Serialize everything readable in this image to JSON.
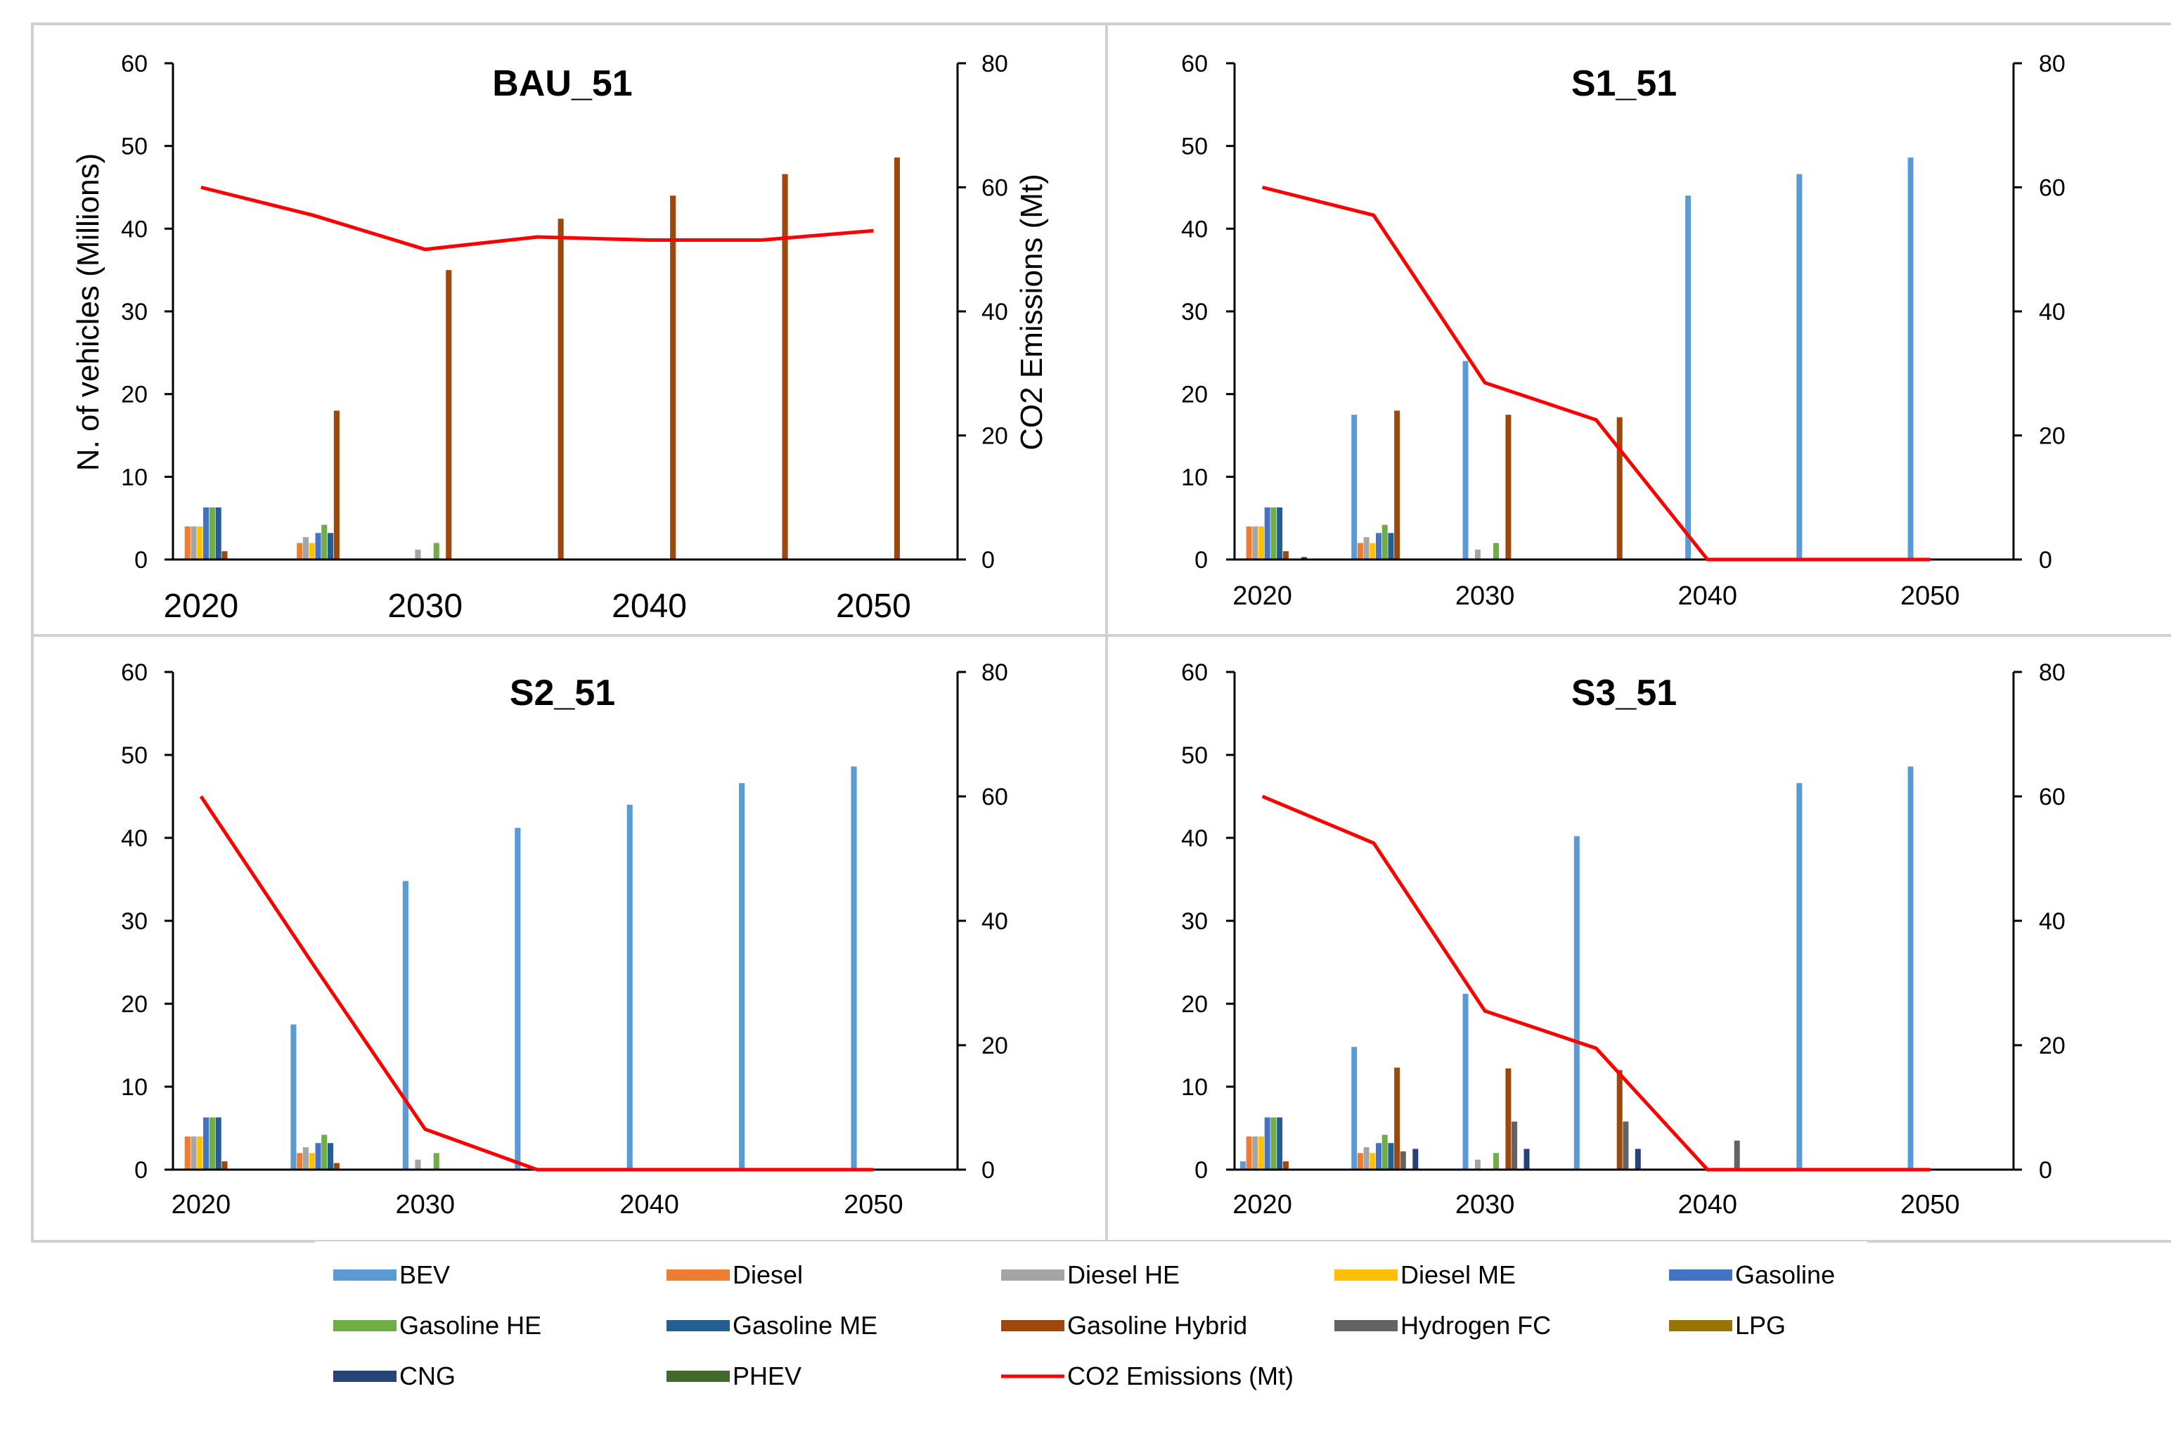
{
  "figure": {
    "y_left_label": "N. of vehicles (Millions)",
    "y_right_label": "CO2 Emissions (Mt)"
  },
  "colors": {
    "BEV": "#5B9BD5",
    "Diesel": "#ED7D31",
    "Diesel HE": "#A5A5A5",
    "Diesel ME": "#FFC000",
    "Gasoline": "#4472C4",
    "Gasoline HE": "#70AD47",
    "Gasoline ME": "#255E91",
    "Gasoline Hybrid": "#9E480E",
    "Hydrogen FC": "#636363",
    "LPG": "#997300",
    "CNG": "#264478",
    "PHEV": "#43682B",
    "CO2 Emissions (Mt)": "#FF0000"
  },
  "legend": {
    "items": [
      "BEV",
      "Diesel",
      "Diesel HE",
      "Diesel ME",
      "Gasoline",
      "Gasoline HE",
      "Gasoline ME",
      "Gasoline Hybrid",
      "Hydrogen FC",
      "LPG",
      "CNG",
      "PHEV",
      "CO2 Emissions (Mt)"
    ]
  },
  "chart_data": [
    {
      "type": "bar",
      "title": "BAU_51",
      "ylabel": "N. of vehicles (Millions)",
      "y2label": "CO2 Emissions (Mt)",
      "ylim": [
        0,
        60
      ],
      "y2lim": [
        0,
        80
      ],
      "yticks": [
        "0",
        "10",
        "20",
        "30",
        "40",
        "50",
        "60"
      ],
      "y2ticks": [
        "0",
        "20",
        "40",
        "60",
        "80"
      ],
      "x_ticks": [
        "2020",
        "2030",
        "2040",
        "2050"
      ],
      "periods": [
        "2020",
        "2025",
        "2030",
        "2035",
        "2040",
        "2045",
        "2050"
      ],
      "series": [
        {
          "name": "BEV",
          "values": [
            0,
            0,
            0,
            0,
            0,
            0,
            0
          ]
        },
        {
          "name": "Diesel",
          "values": [
            4,
            2,
            0,
            0,
            0,
            0,
            0
          ]
        },
        {
          "name": "Diesel HE",
          "values": [
            4,
            2.7,
            1.2,
            0,
            0,
            0,
            0
          ]
        },
        {
          "name": "Diesel ME",
          "values": [
            4,
            2,
            0,
            0,
            0,
            0,
            0
          ]
        },
        {
          "name": "Gasoline",
          "values": [
            6.3,
            3.2,
            0,
            0,
            0,
            0,
            0
          ]
        },
        {
          "name": "Gasoline HE",
          "values": [
            6.3,
            4.2,
            2,
            0,
            0,
            0,
            0
          ]
        },
        {
          "name": "Gasoline ME",
          "values": [
            6.3,
            3.2,
            0,
            0,
            0,
            0,
            0
          ]
        },
        {
          "name": "Gasoline Hybrid",
          "values": [
            1,
            18,
            35,
            41.2,
            44,
            46.6,
            48.6
          ]
        },
        {
          "name": "Hydrogen FC",
          "values": [
            0,
            0,
            0,
            0,
            0,
            0,
            0
          ]
        },
        {
          "name": "LPG",
          "values": [
            0,
            0,
            0,
            0,
            0,
            0,
            0
          ]
        },
        {
          "name": "CNG",
          "values": [
            0,
            0,
            0,
            0,
            0,
            0,
            0
          ]
        },
        {
          "name": "PHEV",
          "values": [
            0,
            0,
            0,
            0,
            0,
            0,
            0
          ]
        }
      ],
      "co2": {
        "name": "CO2 Emissions (Mt)",
        "values": [
          60,
          55.5,
          50,
          52,
          51.5,
          51.5,
          53
        ]
      }
    },
    {
      "type": "bar",
      "title": "S1_51",
      "ylabel": "",
      "y2label": "",
      "ylim": [
        0,
        60
      ],
      "y2lim": [
        0,
        80
      ],
      "yticks": [
        "0",
        "10",
        "20",
        "30",
        "40",
        "50",
        "60"
      ],
      "y2ticks": [
        "0",
        "20",
        "40",
        "60",
        "80"
      ],
      "x_ticks": [
        "2020",
        "2030",
        "2040",
        "2050"
      ],
      "periods": [
        "2020",
        "2025",
        "2030",
        "2035",
        "2040",
        "2045",
        "2050"
      ],
      "series": [
        {
          "name": "BEV",
          "values": [
            0.1,
            17.5,
            24,
            0,
            44,
            46.6,
            48.6
          ]
        },
        {
          "name": "Diesel",
          "values": [
            4,
            2,
            0,
            0,
            0,
            0,
            0
          ]
        },
        {
          "name": "Diesel HE",
          "values": [
            4,
            2.7,
            1.2,
            0,
            0,
            0,
            0
          ]
        },
        {
          "name": "Diesel ME",
          "values": [
            4,
            2,
            0,
            0,
            0,
            0,
            0
          ]
        },
        {
          "name": "Gasoline",
          "values": [
            6.3,
            3.2,
            0,
            0,
            0,
            0,
            0
          ]
        },
        {
          "name": "Gasoline HE",
          "values": [
            6.3,
            4.2,
            2,
            0,
            0,
            0,
            0
          ]
        },
        {
          "name": "Gasoline ME",
          "values": [
            6.3,
            3.2,
            0,
            0,
            0,
            0,
            0
          ]
        },
        {
          "name": "Gasoline Hybrid",
          "values": [
            1,
            18,
            17.5,
            17.2,
            0,
            0,
            0
          ]
        },
        {
          "name": "Hydrogen FC",
          "values": [
            0,
            0,
            0,
            0,
            0,
            0,
            0
          ]
        },
        {
          "name": "LPG",
          "values": [
            0,
            0,
            0,
            0,
            0,
            0,
            0
          ]
        },
        {
          "name": "CNG",
          "values": [
            0.3,
            0,
            0,
            0,
            0,
            0,
            0
          ]
        },
        {
          "name": "PHEV",
          "values": [
            0,
            0,
            0,
            0,
            0,
            0,
            0
          ]
        }
      ],
      "co2": {
        "name": "CO2 Emissions (Mt)",
        "values": [
          60,
          55.5,
          28.5,
          22.5,
          0,
          0,
          0
        ]
      }
    },
    {
      "type": "bar",
      "title": "S2_51",
      "ylabel": "",
      "y2label": "",
      "ylim": [
        0,
        60
      ],
      "y2lim": [
        0,
        80
      ],
      "yticks": [
        "0",
        "10",
        "20",
        "30",
        "40",
        "50",
        "60"
      ],
      "y2ticks": [
        "0",
        "20",
        "40",
        "60",
        "80"
      ],
      "x_ticks": [
        "2020",
        "2030",
        "2040",
        "2050"
      ],
      "periods": [
        "2020",
        "2025",
        "2030",
        "2035",
        "2040",
        "2045",
        "2050"
      ],
      "series": [
        {
          "name": "BEV",
          "values": [
            0.1,
            17.5,
            34.8,
            41.2,
            44,
            46.6,
            48.6
          ]
        },
        {
          "name": "Diesel",
          "values": [
            4,
            2,
            0,
            0,
            0,
            0,
            0
          ]
        },
        {
          "name": "Diesel HE",
          "values": [
            4,
            2.7,
            1.2,
            0,
            0,
            0,
            0
          ]
        },
        {
          "name": "Diesel ME",
          "values": [
            4,
            2,
            0,
            0,
            0,
            0,
            0
          ]
        },
        {
          "name": "Gasoline",
          "values": [
            6.3,
            3.2,
            0,
            0,
            0,
            0,
            0
          ]
        },
        {
          "name": "Gasoline HE",
          "values": [
            6.3,
            4.2,
            2,
            0,
            0,
            0,
            0
          ]
        },
        {
          "name": "Gasoline ME",
          "values": [
            6.3,
            3.2,
            0,
            0,
            0,
            0,
            0
          ]
        },
        {
          "name": "Gasoline Hybrid",
          "values": [
            1,
            0.8,
            0,
            0,
            0,
            0,
            0
          ]
        },
        {
          "name": "Hydrogen FC",
          "values": [
            0,
            0,
            0,
            0,
            0,
            0,
            0
          ]
        },
        {
          "name": "LPG",
          "values": [
            0,
            0,
            0,
            0,
            0,
            0,
            0
          ]
        },
        {
          "name": "CNG",
          "values": [
            0,
            0,
            0,
            0,
            0,
            0,
            0
          ]
        },
        {
          "name": "PHEV",
          "values": [
            0,
            0,
            0,
            0,
            0,
            0,
            0
          ]
        }
      ],
      "co2": {
        "name": "CO2 Emissions (Mt)",
        "values": [
          60,
          33,
          6.5,
          0,
          0,
          0,
          0
        ]
      }
    },
    {
      "type": "bar",
      "title": "S3_51",
      "ylabel": "",
      "y2label": "",
      "ylim": [
        0,
        60
      ],
      "y2lim": [
        0,
        80
      ],
      "yticks": [
        "0",
        "10",
        "20",
        "30",
        "40",
        "50",
        "60"
      ],
      "y2ticks": [
        "0",
        "20",
        "40",
        "60",
        "80"
      ],
      "x_ticks": [
        "2020",
        "2030",
        "2040",
        "2050"
      ],
      "periods": [
        "2020",
        "2025",
        "2030",
        "2035",
        "2040",
        "2045",
        "2050"
      ],
      "series": [
        {
          "name": "BEV",
          "values": [
            1,
            14.8,
            21.2,
            40.2,
            0,
            46.6,
            48.6
          ]
        },
        {
          "name": "Diesel",
          "values": [
            4,
            2,
            0,
            0,
            0,
            0,
            0
          ]
        },
        {
          "name": "Diesel HE",
          "values": [
            4,
            2.7,
            1.2,
            0,
            0,
            0,
            0
          ]
        },
        {
          "name": "Diesel ME",
          "values": [
            4,
            2,
            0,
            0,
            0,
            0,
            0
          ]
        },
        {
          "name": "Gasoline",
          "values": [
            6.3,
            3.2,
            0,
            0,
            0,
            0,
            0
          ]
        },
        {
          "name": "Gasoline HE",
          "values": [
            6.3,
            4.2,
            2,
            0,
            0,
            0,
            0
          ]
        },
        {
          "name": "Gasoline ME",
          "values": [
            6.3,
            3.2,
            0,
            0,
            0,
            0,
            0
          ]
        },
        {
          "name": "Gasoline Hybrid",
          "values": [
            1,
            12.3,
            12.2,
            12,
            0,
            0,
            0
          ]
        },
        {
          "name": "Hydrogen FC",
          "values": [
            0,
            2.2,
            5.8,
            5.8,
            3.5,
            0,
            0
          ]
        },
        {
          "name": "LPG",
          "values": [
            0,
            0,
            0,
            0,
            0,
            0,
            0
          ]
        },
        {
          "name": "CNG",
          "values": [
            0,
            2.5,
            2.5,
            2.5,
            0,
            0,
            0
          ]
        },
        {
          "name": "PHEV",
          "values": [
            0,
            0,
            0,
            0,
            0,
            0,
            0
          ]
        }
      ],
      "co2": {
        "name": "CO2 Emissions (Mt)",
        "values": [
          60,
          52.5,
          25.5,
          19.5,
          0,
          0,
          0
        ]
      }
    }
  ]
}
